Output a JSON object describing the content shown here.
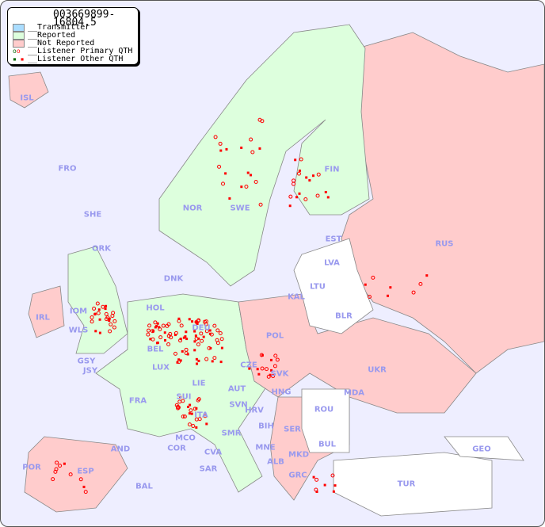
{
  "title": "003669899-16804.5",
  "legend": [
    {
      "label": "__Transmitter",
      "color": "#aaddff"
    },
    {
      "label": "__Reported",
      "color": "#ddffdd"
    },
    {
      "label": "__Not Reported",
      "color": "#ffcccc"
    },
    {
      "label": "__Listener Primary QTH",
      "icon": "circle-marker"
    },
    {
      "label": "__Listener Other QTH",
      "icon": "square-marker"
    }
  ],
  "colors": {
    "sea": "#eeeeff",
    "reported": "#ddffdd",
    "not_reported": "#ffcccc",
    "none": "#ffffff",
    "marker": "#ff0000",
    "marker_green": "#006600",
    "label": "#9999ee"
  },
  "countries": {
    "ISL": "ISL",
    "FRO": "FRO",
    "SHE": "SHE",
    "ORK": "ORK",
    "NOR": "NOR",
    "SWE": "SWE",
    "FIN": "FIN",
    "EST": "EST",
    "RUS": "RUS",
    "LVA": "LVA",
    "LTU": "LTU",
    "DNK": "DNK",
    "KAL": "KAL",
    "BLR": "BLR",
    "HOL": "HOL",
    "DEU": "DEU",
    "POL": "POL",
    "IRL": "IRL",
    "IOM": "IOM",
    "WLS": "WLS",
    "BEL": "BEL",
    "LUX": "LUX",
    "GSY": "GSY",
    "JSY": "JSY",
    "CZE": "CZE",
    "SVK": "SVK",
    "UKR": "UKR",
    "MDA": "MDA",
    "FRA": "FRA",
    "SUI": "SUI",
    "LIE": "LIE",
    "AUT": "AUT",
    "HNG": "HNG",
    "SVN": "SVN",
    "HRV": "HRV",
    "ROU": "ROU",
    "ITA": "ITA",
    "BIH": "BIH",
    "SER": "SER",
    "MCO": "MCO",
    "SMR": "SMR",
    "BUL": "BUL",
    "GEO": "GEO",
    "AND": "AND",
    "COR": "COR",
    "CVA": "CVA",
    "MNE": "MNE",
    "MKD": "MKD",
    "ALB": "ALB",
    "POR": "POR",
    "ESP": "ESP",
    "SAR": "SAR",
    "GRC": "GRC",
    "TUR": "TUR",
    "BAL": "BAL"
  }
}
